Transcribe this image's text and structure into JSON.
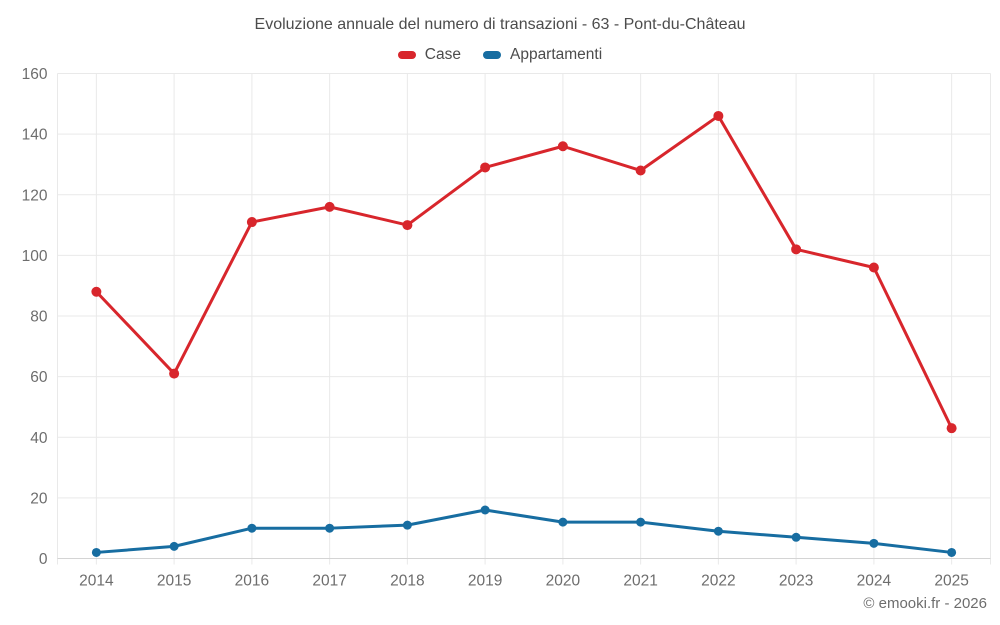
{
  "chart_data": {
    "type": "line",
    "title": "Evoluzione annuale del numero di transazioni - 63 - Pont-du-Château",
    "categories": [
      "2014",
      "2015",
      "2016",
      "2017",
      "2018",
      "2019",
      "2020",
      "2021",
      "2022",
      "2023",
      "2024",
      "2025"
    ],
    "series": [
      {
        "name": "Case",
        "color": "#d8262c",
        "marker_radius": 5,
        "values": [
          88,
          61,
          111,
          116,
          110,
          129,
          136,
          128,
          146,
          102,
          96,
          43
        ]
      },
      {
        "name": "Appartamenti",
        "color": "#176da1",
        "marker_radius": 4.5,
        "values": [
          2,
          4,
          10,
          10,
          11,
          16,
          12,
          12,
          9,
          7,
          5,
          2
        ]
      }
    ],
    "ylim": [
      0,
      160
    ],
    "ytick_step": 20,
    "ytick_labels": [
      "0",
      "20",
      "40",
      "60",
      "80",
      "100",
      "120",
      "140",
      "160"
    ],
    "grid": "both",
    "legend_position": "top",
    "xlabel": "",
    "ylabel": ""
  },
  "colors": {
    "grid": "#e9e9e9",
    "axis_line": "#d4d4d4",
    "tick_text": "#6d6d6d",
    "title_text": "#4c4c4c"
  },
  "footer": {
    "credit": "© emooki.fr - 2026"
  }
}
